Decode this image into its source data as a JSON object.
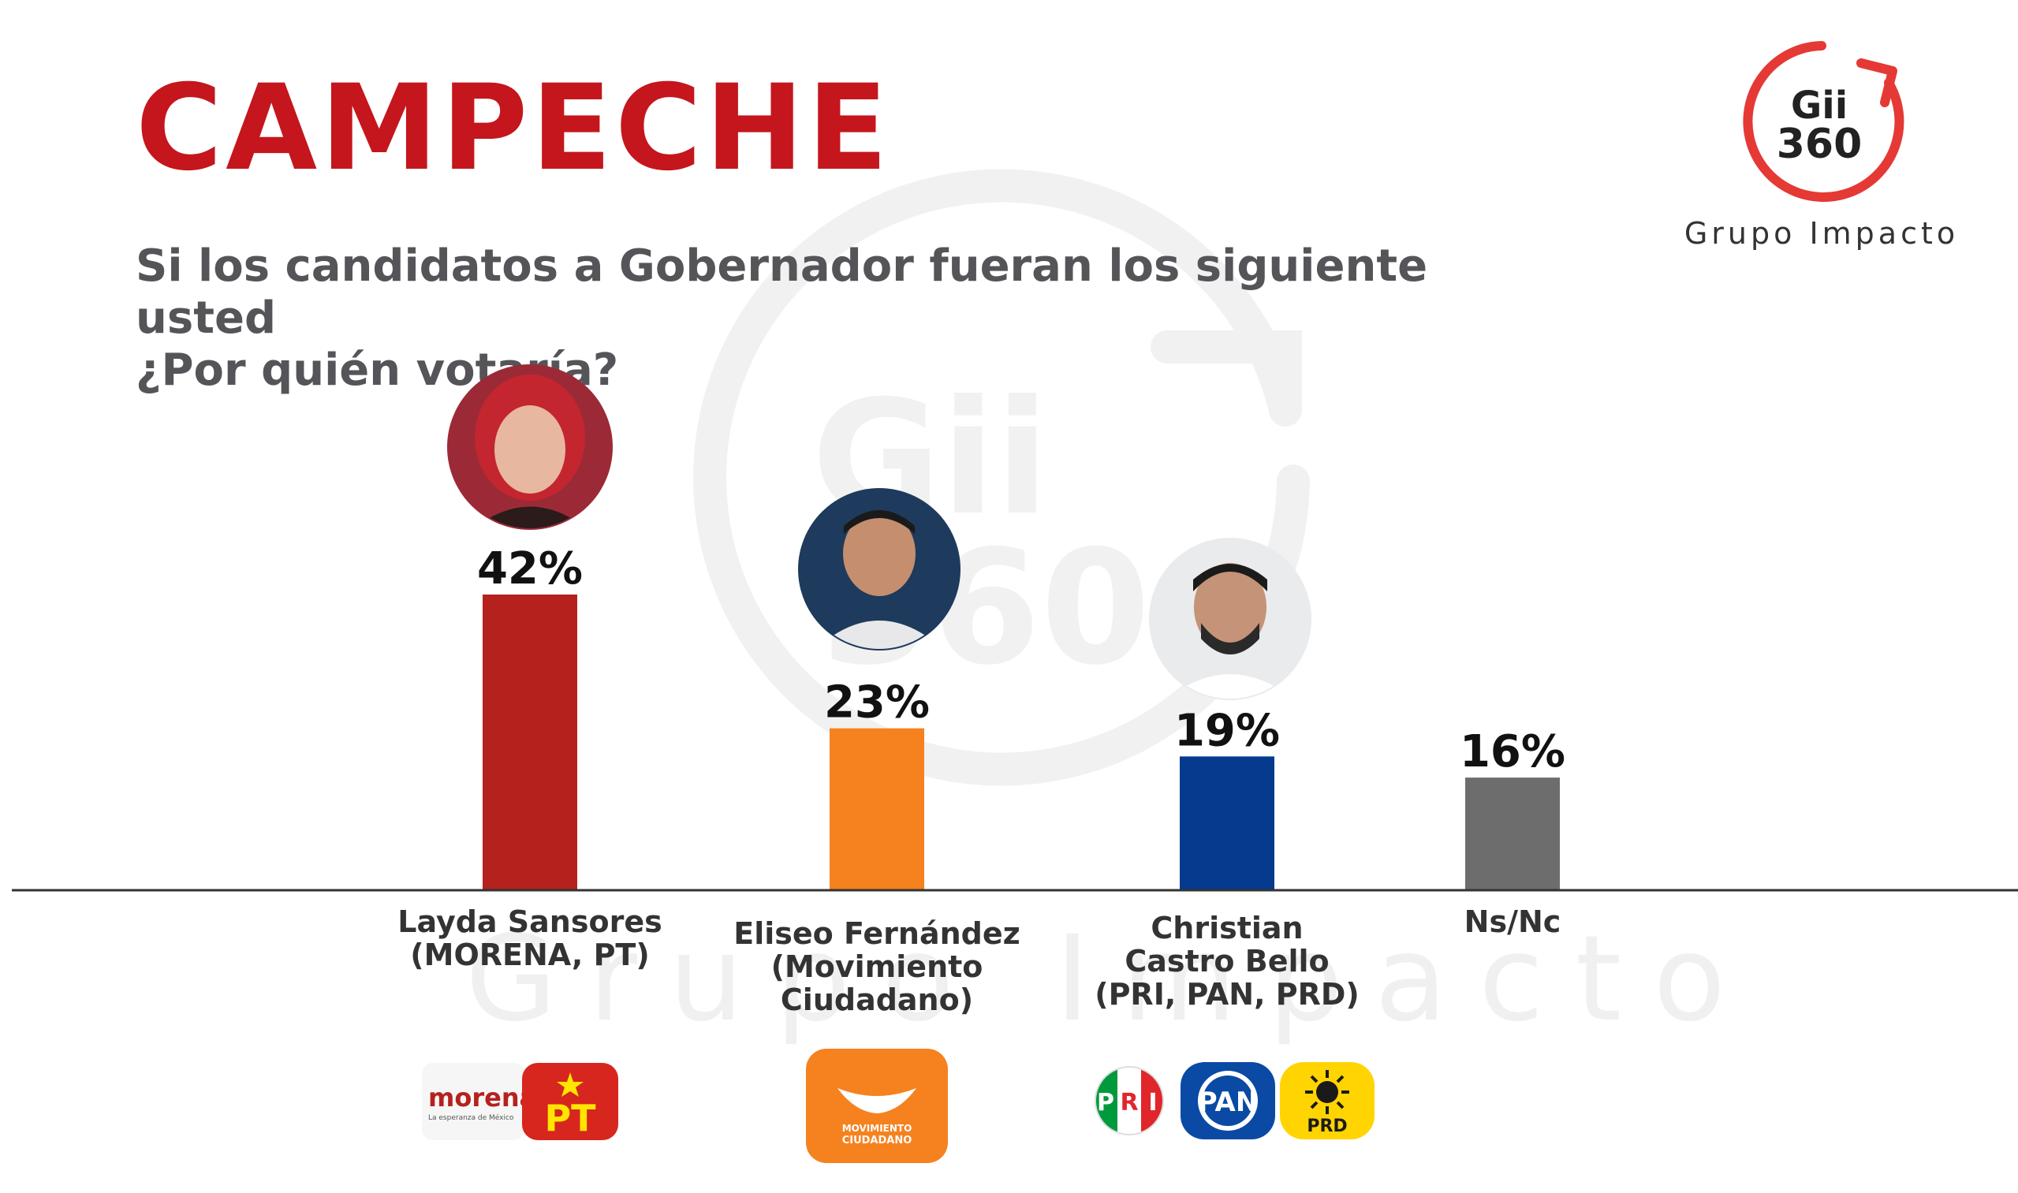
{
  "header": {
    "title": "CAMPECHE",
    "question_line1": "Si los candidatos a Gobernador fueran los siguiente usted",
    "question_line2": "¿Por quién votaría?"
  },
  "logo": {
    "line1": "Gii",
    "line2": "360",
    "caption": "Grupo Impacto",
    "accent": "#e53935"
  },
  "watermark": {
    "line1": "Gii",
    "line2": "360",
    "text": "Grupo Impacto"
  },
  "chart_data": {
    "type": "bar",
    "categories": [
      "Layda Sansores (MORENA, PT)",
      "Eliseo Fernández (Movimiento Ciudadano)",
      "Christian Castro Bello (PRI, PAN, PRD)",
      "Ns/Nc"
    ],
    "values": [
      42,
      23,
      19,
      16
    ],
    "value_labels": [
      "42%",
      "23%",
      "19%",
      "16%"
    ],
    "colors": [
      "#b5221e",
      "#f5821f",
      "#063a8f",
      "#6d6d6d"
    ],
    "ylim": [
      0,
      42
    ],
    "grid": false,
    "legend": "none"
  },
  "labels": [
    {
      "lines": [
        "Layda Sansores",
        "(MORENA, PT)"
      ]
    },
    {
      "lines": [
        "Eliseo Fernández",
        "(Movimiento",
        "Ciudadano)"
      ]
    },
    {
      "lines": [
        "Christian",
        "Castro Bello",
        "(PRI, PAN, PRD)"
      ]
    },
    {
      "lines": [
        "Ns/Nc"
      ]
    }
  ],
  "parties": {
    "morena": {
      "name": "morena",
      "tagline": "La esperanza de México",
      "color": "#b5221e"
    },
    "pt": {
      "name": "PT",
      "color": "#d7261e",
      "text_color": "#ffe500"
    },
    "mc": {
      "name_line1": "MOVIMIENTO",
      "name_line2": "CIUDADANO",
      "color": "#f5821f"
    },
    "pri": {
      "letters": [
        "P",
        "R",
        "I"
      ],
      "colors": [
        "#009a3d",
        "#ffffff",
        "#e0262b"
      ]
    },
    "pan": {
      "name": "PAN",
      "color": "#0a4aa5"
    },
    "prd": {
      "name": "PRD",
      "color": "#ffd400"
    }
  }
}
